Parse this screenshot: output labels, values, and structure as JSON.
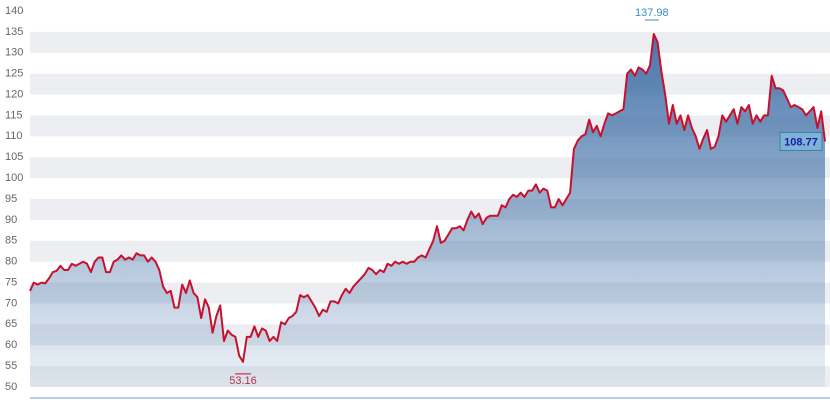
{
  "chart_data": {
    "type": "area",
    "values": [
      73,
      75,
      74.5,
      75,
      74.8,
      76,
      77.5,
      77.8,
      79,
      78,
      78,
      79.5,
      79,
      79.5,
      80,
      79.5,
      77.5,
      80,
      81,
      81,
      77.5,
      77.5,
      80,
      80.5,
      81.5,
      80.5,
      81,
      80.5,
      82,
      81.5,
      81.5,
      80,
      81,
      80,
      78,
      74,
      72.5,
      73,
      69,
      69,
      74.5,
      72.5,
      75.5,
      72.5,
      71.5,
      66.5,
      71,
      69,
      63,
      67,
      69.5,
      61,
      63.5,
      62.5,
      62,
      57.5,
      56,
      62,
      62,
      64.5,
      62,
      64,
      63.5,
      61,
      62,
      61,
      65.5,
      65,
      66.5,
      67,
      68,
      72,
      71.5,
      72,
      70.5,
      69,
      67,
      68.5,
      68,
      70.5,
      70.5,
      70,
      72,
      73.5,
      72.5,
      74,
      75,
      76,
      77,
      78.5,
      78,
      77,
      78,
      77.5,
      79.5,
      79,
      80,
      79.5,
      80,
      79.5,
      80,
      80,
      81,
      81.5,
      81,
      83,
      85,
      88.5,
      84.5,
      85,
      86.5,
      88,
      88,
      88.5,
      87.5,
      90,
      92,
      90.5,
      91.5,
      89,
      90.5,
      91,
      91,
      91,
      93.5,
      93,
      95,
      96,
      95.5,
      96.5,
      95.5,
      97,
      97,
      98.5,
      96.5,
      97.5,
      97,
      93,
      93,
      95,
      93.5,
      95,
      96.5,
      107,
      109,
      110,
      110.5,
      114,
      111,
      112.5,
      110,
      113,
      115.5,
      115,
      115.5,
      116,
      116.5,
      125,
      126,
      124.5,
      126.5,
      126,
      125,
      127,
      134.5,
      132.5,
      125.5,
      120,
      113,
      117.5,
      113,
      115,
      111.5,
      115,
      112,
      110,
      107,
      109.5,
      111.5,
      107,
      107.5,
      110,
      115,
      113.5,
      115,
      116.5,
      113,
      117,
      116,
      117.5,
      113,
      115,
      113.5,
      115,
      115,
      124.5,
      121.5,
      121.5,
      121,
      119,
      117,
      117.5,
      117,
      116.5,
      115,
      116,
      117,
      112,
      116,
      108.77
    ],
    "line_color": "#c8102e",
    "fill_color": "#3e6ea6",
    "ylim": [
      50,
      140
    ],
    "yticks": [
      50,
      55,
      60,
      65,
      70,
      75,
      80,
      85,
      90,
      95,
      100,
      105,
      110,
      115,
      120,
      125,
      130,
      135,
      140
    ],
    "annotations": {
      "high": "137.98",
      "low": "53.16"
    }
  }
}
